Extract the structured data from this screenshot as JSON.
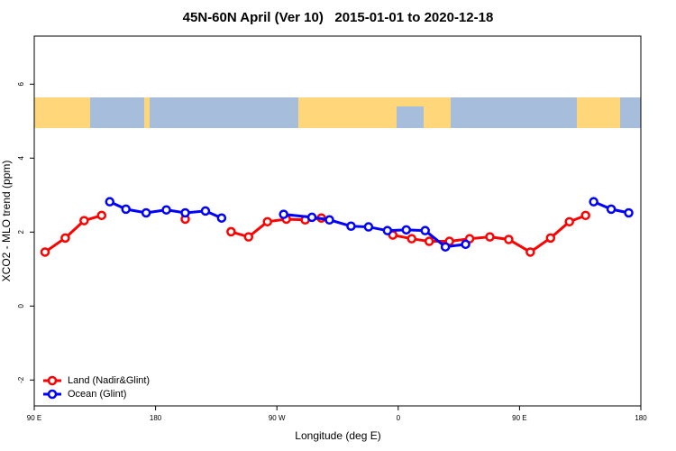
{
  "chart_data": {
    "type": "line",
    "title": "45N-60N April (Ver 10)   2015-01-01 to 2020-12-18",
    "x_label": "Longitude (deg E)",
    "y_label": "XCO2 - MLO trend (ppm)",
    "xlim": [
      90,
      540
    ],
    "xticks": [
      {
        "value": 90,
        "label": "90 E"
      },
      {
        "value": 180,
        "label": "180"
      },
      {
        "value": 270,
        "label": "90 W"
      },
      {
        "value": 360,
        "label": "0"
      },
      {
        "value": 450,
        "label": "90 E"
      },
      {
        "value": 540,
        "label": "180"
      }
    ],
    "ylim": [
      -2.7,
      7.3
    ],
    "yticks": [
      -2,
      0,
      2,
      4,
      6
    ],
    "grid": false,
    "legend": "bottom-left",
    "series": [
      {
        "name": "Land (Nadir&Glint)",
        "color": "#ff0000",
        "x": [
          98,
          113,
          127,
          140,
          171,
          202,
          219,
          236,
          249,
          263,
          277,
          291,
          303,
          330,
          356,
          370,
          383,
          398,
          413,
          428,
          442,
          458,
          473,
          487,
          499
        ],
        "values": [
          1.46,
          1.84,
          2.31,
          2.45,
          null,
          2.35,
          null,
          2.01,
          1.87,
          2.28,
          2.35,
          2.33,
          2.38,
          null,
          1.92,
          1.82,
          1.75,
          1.75,
          1.82,
          1.87,
          1.8,
          1.46,
          1.84,
          2.28,
          2.45
        ]
      },
      {
        "name": "Ocean (Glint)",
        "color": "#0000ff",
        "x": [
          146,
          158,
          173,
          188,
          202,
          217,
          229,
          252,
          275,
          296,
          309,
          325,
          338,
          352,
          366,
          380,
          395,
          410,
          457,
          505,
          518,
          531
        ],
        "values": [
          2.82,
          2.62,
          2.52,
          2.6,
          2.52,
          2.57,
          2.38,
          null,
          2.48,
          2.4,
          2.33,
          2.16,
          2.14,
          2.04,
          2.06,
          2.04,
          1.6,
          1.67,
          null,
          2.82,
          2.62,
          2.52
        ]
      }
    ]
  }
}
